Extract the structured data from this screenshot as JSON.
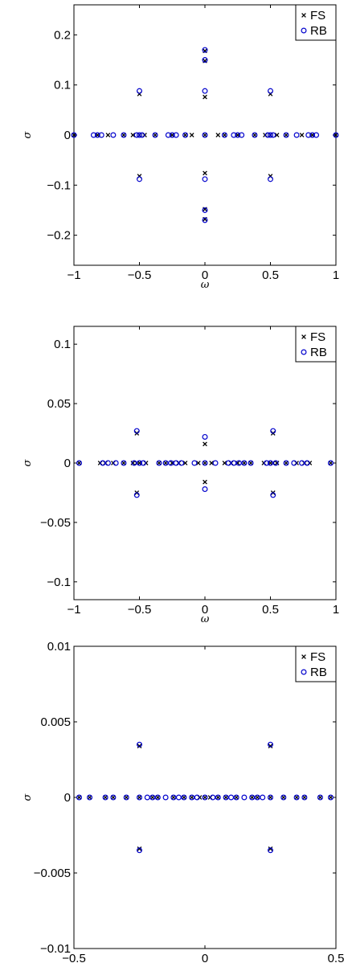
{
  "chart_data": [
    {
      "type": "scatter",
      "title": "",
      "xlabel": "ω",
      "ylabel": "σ",
      "xlim": [
        -1,
        1
      ],
      "ylim": [
        -0.26,
        0.26
      ],
      "xticks": [
        -1,
        -0.5,
        0,
        0.5,
        1
      ],
      "xtick_labels": [
        "−1",
        "−0.5",
        "0",
        "0.5",
        "1"
      ],
      "yticks": [
        -0.2,
        -0.1,
        0,
        0.1,
        0.2
      ],
      "ytick_labels": [
        "−0.2",
        "−0.1",
        "0",
        "0.1",
        "0.2"
      ],
      "grid": false,
      "legend_position": "top-right",
      "series": [
        {
          "name": "FS",
          "marker": "x",
          "color": "#000000",
          "points": [
            [
              -1,
              0
            ],
            [
              -0.82,
              0
            ],
            [
              -0.74,
              0
            ],
            [
              -0.62,
              0
            ],
            [
              -0.55,
              0
            ],
            [
              -0.5,
              0
            ],
            [
              -0.46,
              0
            ],
            [
              -0.38,
              0
            ],
            [
              -0.25,
              0
            ],
            [
              -0.15,
              0
            ],
            [
              -0.1,
              0
            ],
            [
              0,
              0
            ],
            [
              0.1,
              0
            ],
            [
              0.15,
              0
            ],
            [
              0.25,
              0
            ],
            [
              0.38,
              0
            ],
            [
              0.46,
              0
            ],
            [
              0.5,
              0
            ],
            [
              0.55,
              0
            ],
            [
              0.62,
              0
            ],
            [
              0.74,
              0
            ],
            [
              0.82,
              0
            ],
            [
              1,
              0
            ],
            [
              -0.5,
              0.082
            ],
            [
              0.5,
              0.082
            ],
            [
              -0.5,
              -0.082
            ],
            [
              0.5,
              -0.082
            ],
            [
              0,
              0.076
            ],
            [
              0,
              -0.076
            ],
            [
              0,
              0.148
            ],
            [
              0,
              -0.148
            ],
            [
              0,
              0.168
            ],
            [
              0,
              -0.168
            ]
          ]
        },
        {
          "name": "RB",
          "marker": "o",
          "color": "#0000cc",
          "points": [
            [
              -1,
              0
            ],
            [
              -0.85,
              0
            ],
            [
              -0.82,
              0
            ],
            [
              -0.79,
              0
            ],
            [
              -0.7,
              0
            ],
            [
              -0.62,
              0
            ],
            [
              -0.52,
              0
            ],
            [
              -0.5,
              0
            ],
            [
              -0.48,
              0
            ],
            [
              -0.38,
              0
            ],
            [
              -0.28,
              0
            ],
            [
              -0.25,
              0
            ],
            [
              -0.22,
              0
            ],
            [
              -0.15,
              0
            ],
            [
              0,
              0
            ],
            [
              0.15,
              0
            ],
            [
              0.22,
              0
            ],
            [
              0.25,
              0
            ],
            [
              0.28,
              0
            ],
            [
              0.38,
              0
            ],
            [
              0.48,
              0
            ],
            [
              0.5,
              0
            ],
            [
              0.52,
              0
            ],
            [
              0.62,
              0
            ],
            [
              0.7,
              0
            ],
            [
              0.79,
              0
            ],
            [
              0.82,
              0
            ],
            [
              0.85,
              0
            ],
            [
              1,
              0
            ],
            [
              -0.5,
              0.088
            ],
            [
              0.5,
              0.088
            ],
            [
              -0.5,
              -0.088
            ],
            [
              0.5,
              -0.088
            ],
            [
              0,
              0.088
            ],
            [
              0,
              -0.088
            ],
            [
              0,
              0.15
            ],
            [
              0,
              -0.15
            ],
            [
              0,
              0.17
            ],
            [
              0,
              -0.17
            ]
          ]
        }
      ]
    },
    {
      "type": "scatter",
      "title": "",
      "xlabel": "ω",
      "ylabel": "σ",
      "xlim": [
        -1,
        1
      ],
      "ylim": [
        -0.115,
        0.115
      ],
      "xticks": [
        -1,
        -0.5,
        0,
        0.5,
        1
      ],
      "xtick_labels": [
        "−1",
        "−0.5",
        "0",
        "0.5",
        "1"
      ],
      "yticks": [
        -0.1,
        -0.05,
        0,
        0.05,
        0.1
      ],
      "ytick_labels": [
        "−0.1",
        "−0.05",
        "0",
        "0.05",
        "0.1"
      ],
      "grid": false,
      "legend_position": "top-right",
      "series": [
        {
          "name": "FS",
          "marker": "x",
          "color": "#000000",
          "points": [
            [
              -0.96,
              0
            ],
            [
              -0.8,
              0
            ],
            [
              -0.76,
              0
            ],
            [
              -0.7,
              0
            ],
            [
              -0.62,
              0
            ],
            [
              -0.55,
              0
            ],
            [
              -0.52,
              0
            ],
            [
              -0.5,
              0
            ],
            [
              -0.45,
              0
            ],
            [
              -0.35,
              0
            ],
            [
              -0.3,
              0
            ],
            [
              -0.25,
              0
            ],
            [
              -0.2,
              0
            ],
            [
              -0.15,
              0
            ],
            [
              -0.05,
              0
            ],
            [
              0,
              0
            ],
            [
              0.05,
              0
            ],
            [
              0.15,
              0
            ],
            [
              0.2,
              0
            ],
            [
              0.25,
              0
            ],
            [
              0.3,
              0
            ],
            [
              0.35,
              0
            ],
            [
              0.45,
              0
            ],
            [
              0.5,
              0
            ],
            [
              0.52,
              0
            ],
            [
              0.55,
              0
            ],
            [
              0.62,
              0
            ],
            [
              0.7,
              0
            ],
            [
              0.76,
              0
            ],
            [
              0.8,
              0
            ],
            [
              0.96,
              0
            ],
            [
              -0.52,
              0.025
            ],
            [
              0.52,
              0.025
            ],
            [
              -0.52,
              -0.025
            ],
            [
              0.52,
              -0.025
            ],
            [
              0,
              0.016
            ],
            [
              0,
              -0.016
            ]
          ]
        },
        {
          "name": "RB",
          "marker": "o",
          "color": "#0000cc",
          "points": [
            [
              -0.96,
              0
            ],
            [
              -0.78,
              0
            ],
            [
              -0.74,
              0
            ],
            [
              -0.68,
              0
            ],
            [
              -0.62,
              0
            ],
            [
              -0.54,
              0
            ],
            [
              -0.5,
              0
            ],
            [
              -0.47,
              0
            ],
            [
              -0.35,
              0
            ],
            [
              -0.3,
              0
            ],
            [
              -0.26,
              0
            ],
            [
              -0.22,
              0
            ],
            [
              -0.18,
              0
            ],
            [
              -0.08,
              0
            ],
            [
              0,
              0
            ],
            [
              0.08,
              0
            ],
            [
              0.18,
              0
            ],
            [
              0.22,
              0
            ],
            [
              0.26,
              0
            ],
            [
              0.3,
              0
            ],
            [
              0.35,
              0
            ],
            [
              0.47,
              0
            ],
            [
              0.5,
              0
            ],
            [
              0.54,
              0
            ],
            [
              0.62,
              0
            ],
            [
              0.68,
              0
            ],
            [
              0.74,
              0
            ],
            [
              0.78,
              0
            ],
            [
              0.96,
              0
            ],
            [
              -0.52,
              0.027
            ],
            [
              0.52,
              0.027
            ],
            [
              -0.52,
              -0.027
            ],
            [
              0.52,
              -0.027
            ],
            [
              0,
              0.022
            ],
            [
              0,
              -0.022
            ]
          ]
        }
      ]
    },
    {
      "type": "scatter",
      "title": "",
      "xlabel": "ω",
      "ylabel": "σ",
      "xlim": [
        -0.5,
        0.5
      ],
      "ylim": [
        -0.01,
        0.01
      ],
      "xticks": [
        -0.5,
        0,
        0.5
      ],
      "xtick_labels": [
        "−0.5",
        "0",
        "0.5"
      ],
      "yticks": [
        -0.01,
        -0.005,
        0,
        0.005,
        0.01
      ],
      "ytick_labels": [
        "−0.01",
        "−0.005",
        "0",
        "0.005",
        "0.01"
      ],
      "grid": false,
      "legend_position": "top-right",
      "series": [
        {
          "name": "FS",
          "marker": "x",
          "color": "#000000",
          "points": [
            [
              -0.48,
              0
            ],
            [
              -0.44,
              0
            ],
            [
              -0.38,
              0
            ],
            [
              -0.35,
              0
            ],
            [
              -0.3,
              0
            ],
            [
              -0.25,
              0
            ],
            [
              -0.2,
              0
            ],
            [
              -0.18,
              0
            ],
            [
              -0.12,
              0
            ],
            [
              -0.08,
              0
            ],
            [
              -0.05,
              0
            ],
            [
              -0.02,
              0
            ],
            [
              0,
              0
            ],
            [
              0.02,
              0
            ],
            [
              0.05,
              0
            ],
            [
              0.08,
              0
            ],
            [
              0.12,
              0
            ],
            [
              0.18,
              0
            ],
            [
              0.2,
              0
            ],
            [
              0.25,
              0
            ],
            [
              0.3,
              0
            ],
            [
              0.35,
              0
            ],
            [
              0.38,
              0
            ],
            [
              0.44,
              0
            ],
            [
              0.48,
              0
            ],
            [
              -0.25,
              0.0034
            ],
            [
              0.25,
              0.0034
            ],
            [
              -0.25,
              -0.0034
            ],
            [
              0.25,
              -0.0034
            ]
          ]
        },
        {
          "name": "RB",
          "marker": "o",
          "color": "#0000cc",
          "points": [
            [
              -0.48,
              0
            ],
            [
              -0.44,
              0
            ],
            [
              -0.38,
              0
            ],
            [
              -0.35,
              0
            ],
            [
              -0.3,
              0
            ],
            [
              -0.25,
              0
            ],
            [
              -0.22,
              0
            ],
            [
              -0.2,
              0
            ],
            [
              -0.18,
              0
            ],
            [
              -0.15,
              0
            ],
            [
              -0.12,
              0
            ],
            [
              -0.1,
              0
            ],
            [
              -0.08,
              0
            ],
            [
              -0.05,
              0
            ],
            [
              -0.03,
              0
            ],
            [
              0,
              0
            ],
            [
              0.03,
              0
            ],
            [
              0.05,
              0
            ],
            [
              0.08,
              0
            ],
            [
              0.1,
              0
            ],
            [
              0.12,
              0
            ],
            [
              0.15,
              0
            ],
            [
              0.18,
              0
            ],
            [
              0.2,
              0
            ],
            [
              0.22,
              0
            ],
            [
              0.25,
              0
            ],
            [
              0.3,
              0
            ],
            [
              0.35,
              0
            ],
            [
              0.38,
              0
            ],
            [
              0.44,
              0
            ],
            [
              0.48,
              0
            ],
            [
              -0.25,
              0.0035
            ],
            [
              0.25,
              0.0035
            ],
            [
              -0.25,
              -0.0035
            ],
            [
              0.25,
              -0.0035
            ]
          ]
        }
      ]
    }
  ]
}
